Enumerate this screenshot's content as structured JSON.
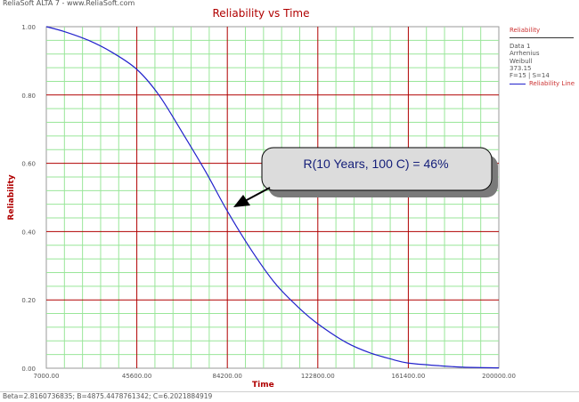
{
  "app": {
    "title": "ReliaSoft ALTA 7 - www.ReliaSoft.com"
  },
  "footer": {
    "params": "Beta=2.8160736835; B=4875.4478761342; C=6.2021884919"
  },
  "legend": {
    "title": "Reliability",
    "lines": [
      "Data 1",
      "Arrhenius",
      "Weibull",
      "373.15",
      "F=15 | S=14"
    ],
    "series_label": "Reliability Line"
  },
  "callout": {
    "text": "R(10 Years, 100 C) = 46%"
  },
  "colors": {
    "major_grid": "#b00000",
    "minor_grid": "#99e699",
    "curve": "#2222cc",
    "title": "#b00000",
    "callout_fill": "#dcdcdc"
  },
  "chart_data": {
    "type": "line",
    "title": "Reliability vs Time",
    "xlabel": "Time",
    "ylabel": "Reliability",
    "xlim": [
      7000,
      200000
    ],
    "ylim": [
      0,
      1
    ],
    "x_ticks": [
      "7000.00",
      "45600.00",
      "84200.00",
      "122800.00",
      "161400.00",
      "200000.00"
    ],
    "y_ticks": [
      "0.00",
      "0.20",
      "0.40",
      "0.60",
      "0.80",
      "1.00"
    ],
    "grid": true,
    "legend_position": "right",
    "series": [
      {
        "name": "Reliability Line",
        "x": [
          7000,
          15000,
          25000,
          35000,
          45600,
          55000,
          65000,
          75000,
          84200,
          95000,
          105000,
          115000,
          122800,
          135000,
          145000,
          155000,
          161400,
          175000,
          185000,
          200000
        ],
        "y": [
          1.0,
          0.985,
          0.96,
          0.925,
          0.875,
          0.8,
          0.69,
          0.575,
          0.46,
          0.34,
          0.245,
          0.175,
          0.13,
          0.075,
          0.045,
          0.025,
          0.015,
          0.007,
          0.003,
          0.001
        ]
      }
    ]
  }
}
